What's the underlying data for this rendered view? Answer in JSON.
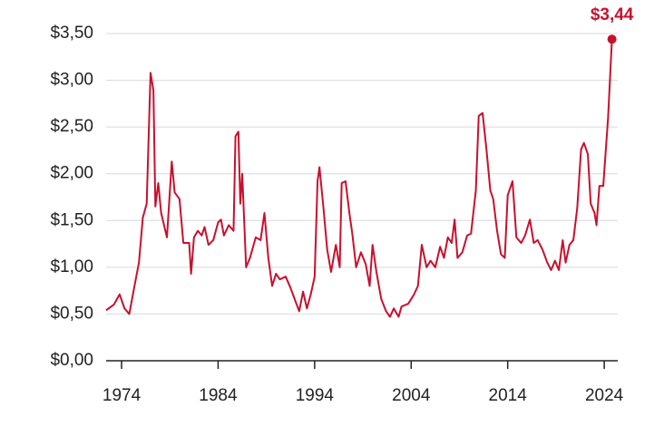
{
  "chart_data": {
    "type": "line",
    "x": [
      1972.4,
      1973.2,
      1973.8,
      1974.3,
      1974.8,
      1975.3,
      1975.8,
      1976.2,
      1976.6,
      1977.0,
      1977.3,
      1977.5,
      1977.8,
      1978.1,
      1978.7,
      1979.2,
      1979.5,
      1980.0,
      1980.4,
      1981.0,
      1981.2,
      1981.5,
      1981.9,
      1982.3,
      1982.6,
      1983.0,
      1983.5,
      1984.0,
      1984.3,
      1984.6,
      1985.1,
      1985.6,
      1985.8,
      1986.1,
      1986.3,
      1986.5,
      1986.9,
      1987.3,
      1987.9,
      1988.4,
      1988.8,
      1989.2,
      1989.6,
      1990.0,
      1990.4,
      1991.0,
      1991.5,
      1992.0,
      1992.4,
      1992.8,
      1993.2,
      1993.6,
      1994.0,
      1994.3,
      1994.5,
      1994.9,
      1995.3,
      1995.7,
      1996.2,
      1996.6,
      1996.8,
      1997.2,
      1997.6,
      1997.9,
      1998.3,
      1998.8,
      1999.3,
      1999.7,
      2000.0,
      2000.4,
      2000.9,
      2001.4,
      2001.8,
      2002.2,
      2002.7,
      2003.0,
      2003.7,
      2004.3,
      2004.7,
      2005.1,
      2005.6,
      2006.0,
      2006.5,
      2007.0,
      2007.4,
      2007.8,
      2008.2,
      2008.5,
      2008.8,
      2009.3,
      2009.8,
      2010.2,
      2010.7,
      2011.0,
      2011.4,
      2011.8,
      2012.2,
      2012.5,
      2012.9,
      2013.3,
      2013.7,
      2014.0,
      2014.5,
      2014.9,
      2015.4,
      2015.8,
      2016.3,
      2016.7,
      2017.1,
      2017.6,
      2018.1,
      2018.5,
      2018.9,
      2019.3,
      2019.7,
      2020.0,
      2020.4,
      2020.8,
      2021.2,
      2021.6,
      2021.9,
      2022.3,
      2022.6,
      2023.0,
      2023.2,
      2023.5,
      2023.9,
      2024.4,
      2024.8
    ],
    "series": [
      {
        "color": "#c8102e",
        "values": [
          0.54,
          0.6,
          0.71,
          0.56,
          0.5,
          0.78,
          1.05,
          1.53,
          1.68,
          3.08,
          2.89,
          1.65,
          1.9,
          1.58,
          1.32,
          2.13,
          1.8,
          1.73,
          1.26,
          1.26,
          0.93,
          1.32,
          1.39,
          1.34,
          1.43,
          1.24,
          1.29,
          1.48,
          1.51,
          1.34,
          1.45,
          1.39,
          2.4,
          2.45,
          1.68,
          2.0,
          1.0,
          1.1,
          1.32,
          1.29,
          1.58,
          1.1,
          0.8,
          0.93,
          0.87,
          0.9,
          0.78,
          0.64,
          0.53,
          0.74,
          0.56,
          0.71,
          0.9,
          1.92,
          2.07,
          1.65,
          1.19,
          0.95,
          1.24,
          1.0,
          1.9,
          1.92,
          1.58,
          1.36,
          1.0,
          1.16,
          1.03,
          0.8,
          1.24,
          0.95,
          0.66,
          0.53,
          0.47,
          0.56,
          0.47,
          0.58,
          0.61,
          0.71,
          0.8,
          1.24,
          1.0,
          1.07,
          1.0,
          1.22,
          1.1,
          1.32,
          1.26,
          1.51,
          1.1,
          1.16,
          1.34,
          1.36,
          1.82,
          2.62,
          2.65,
          2.26,
          1.82,
          1.73,
          1.39,
          1.14,
          1.1,
          1.77,
          1.92,
          1.32,
          1.26,
          1.34,
          1.51,
          1.26,
          1.29,
          1.19,
          1.05,
          0.97,
          1.07,
          0.97,
          1.29,
          1.05,
          1.24,
          1.29,
          1.63,
          2.26,
          2.33,
          2.21,
          1.68,
          1.58,
          1.45,
          1.87,
          1.87,
          2.6,
          3.44
        ],
        "value_labels": {
          "128": "$3,44"
        }
      }
    ],
    "xlim": [
      1972.4,
      2025.4
    ],
    "xticks": [
      1974,
      1984,
      1994,
      2004,
      2014,
      2024
    ],
    "ylim": [
      0,
      3.5
    ],
    "yticks": [
      {
        "value": 0,
        "label": "$0,00"
      },
      {
        "value": 0.5,
        "label": "$0,50"
      },
      {
        "value": 1,
        "label": "$1,00"
      },
      {
        "value": 1.5,
        "label": "$1,50"
      },
      {
        "value": 2,
        "label": "$2,00"
      },
      {
        "value": 2.5,
        "label": "$2,50"
      },
      {
        "value": 3,
        "label": "$3,00"
      },
      {
        "value": 3.5,
        "label": "$3,50"
      }
    ],
    "grid": true
  }
}
